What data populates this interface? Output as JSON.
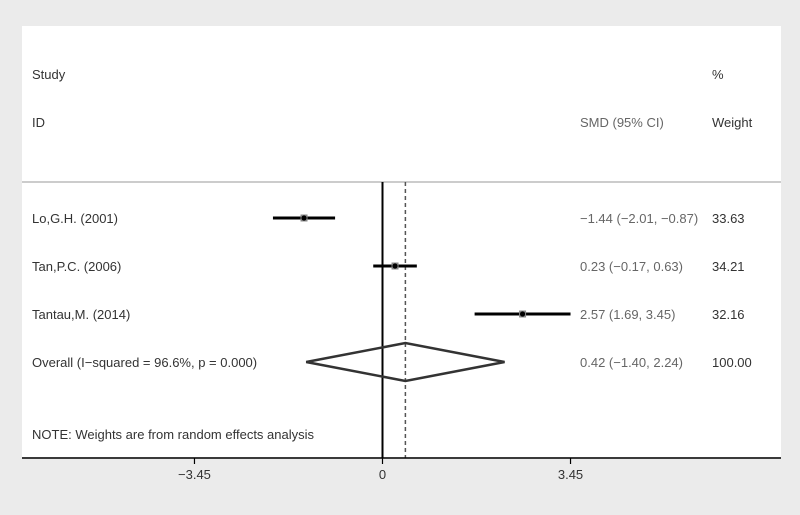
{
  "chart_data": {
    "type": "forest",
    "header": {
      "study_top": "Study",
      "study_bottom": "ID",
      "effect": "SMD (95% CI)",
      "weight_top": "%",
      "weight_bottom": "Weight"
    },
    "studies": [
      {
        "label": "Lo,G.H. (2001)",
        "smd": -1.44,
        "lo": -2.01,
        "hi": -0.87,
        "ci_text": "−1.44 (−2.01, −0.87)",
        "weight_text": "33.63"
      },
      {
        "label": "Tan,P.C. (2006)",
        "smd": 0.23,
        "lo": -0.17,
        "hi": 0.63,
        "ci_text": "0.23 (−0.17, 0.63)",
        "weight_text": "34.21"
      },
      {
        "label": "Tantau,M. (2014)",
        "smd": 2.57,
        "lo": 1.69,
        "hi": 3.45,
        "ci_text": "2.57 (1.69, 3.45)",
        "weight_text": "32.16"
      }
    ],
    "overall": {
      "label": "Overall  (I−squared = 96.6%, p = 0.000)",
      "smd": 0.42,
      "lo": -1.4,
      "hi": 2.24,
      "ci_text": "0.42 (−1.40, 2.24)",
      "weight_text": "100.00"
    },
    "note": "NOTE: Weights are from random effects analysis",
    "x_ticks": [
      {
        "value": -3.45,
        "label": "−3.45"
      },
      {
        "value": 0,
        "label": "0"
      },
      {
        "value": 3.45,
        "label": "3.45"
      }
    ],
    "colors": {
      "background": "#ebebeb",
      "panel": "#ffffff",
      "ink": "#000000",
      "text": "#333333",
      "ci_text": "#666666",
      "rule": "#bbbbbb"
    }
  }
}
